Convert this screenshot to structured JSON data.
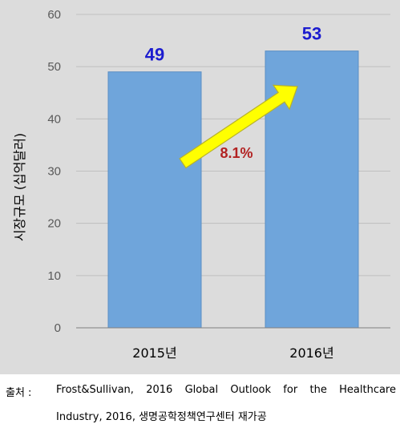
{
  "chart_data": {
    "type": "bar",
    "categories": [
      "2015년",
      "2016년"
    ],
    "values": [
      49,
      53
    ],
    "data_labels": [
      "49",
      "53"
    ],
    "ylabel": "시장규모 (십억달러)",
    "xlabel": "",
    "ylim": [
      0,
      60
    ],
    "yticks": [
      0,
      10,
      20,
      30,
      40,
      50,
      60
    ],
    "grid": true,
    "annotation": {
      "text": "8.1%",
      "arrow_from": "2015년",
      "arrow_to": "2016년"
    },
    "colors": {
      "bar": "#6fa5db",
      "bar_border": "#5b8fc4",
      "panel_bg": "#dcdcdc",
      "gridline": "#bfbfbf",
      "data_label": "#1c1ccf",
      "annotation_text": "#b22222",
      "arrow_fill": "#ffff00",
      "arrow_stroke": "#b7b12b"
    }
  },
  "source": {
    "label": "출처 :",
    "line1": "Frost&Sullivan, 2016 Global Outlook for the Healthcare",
    "line2": "Industry, 2016, 생명공학정책연구센터 재가공"
  }
}
